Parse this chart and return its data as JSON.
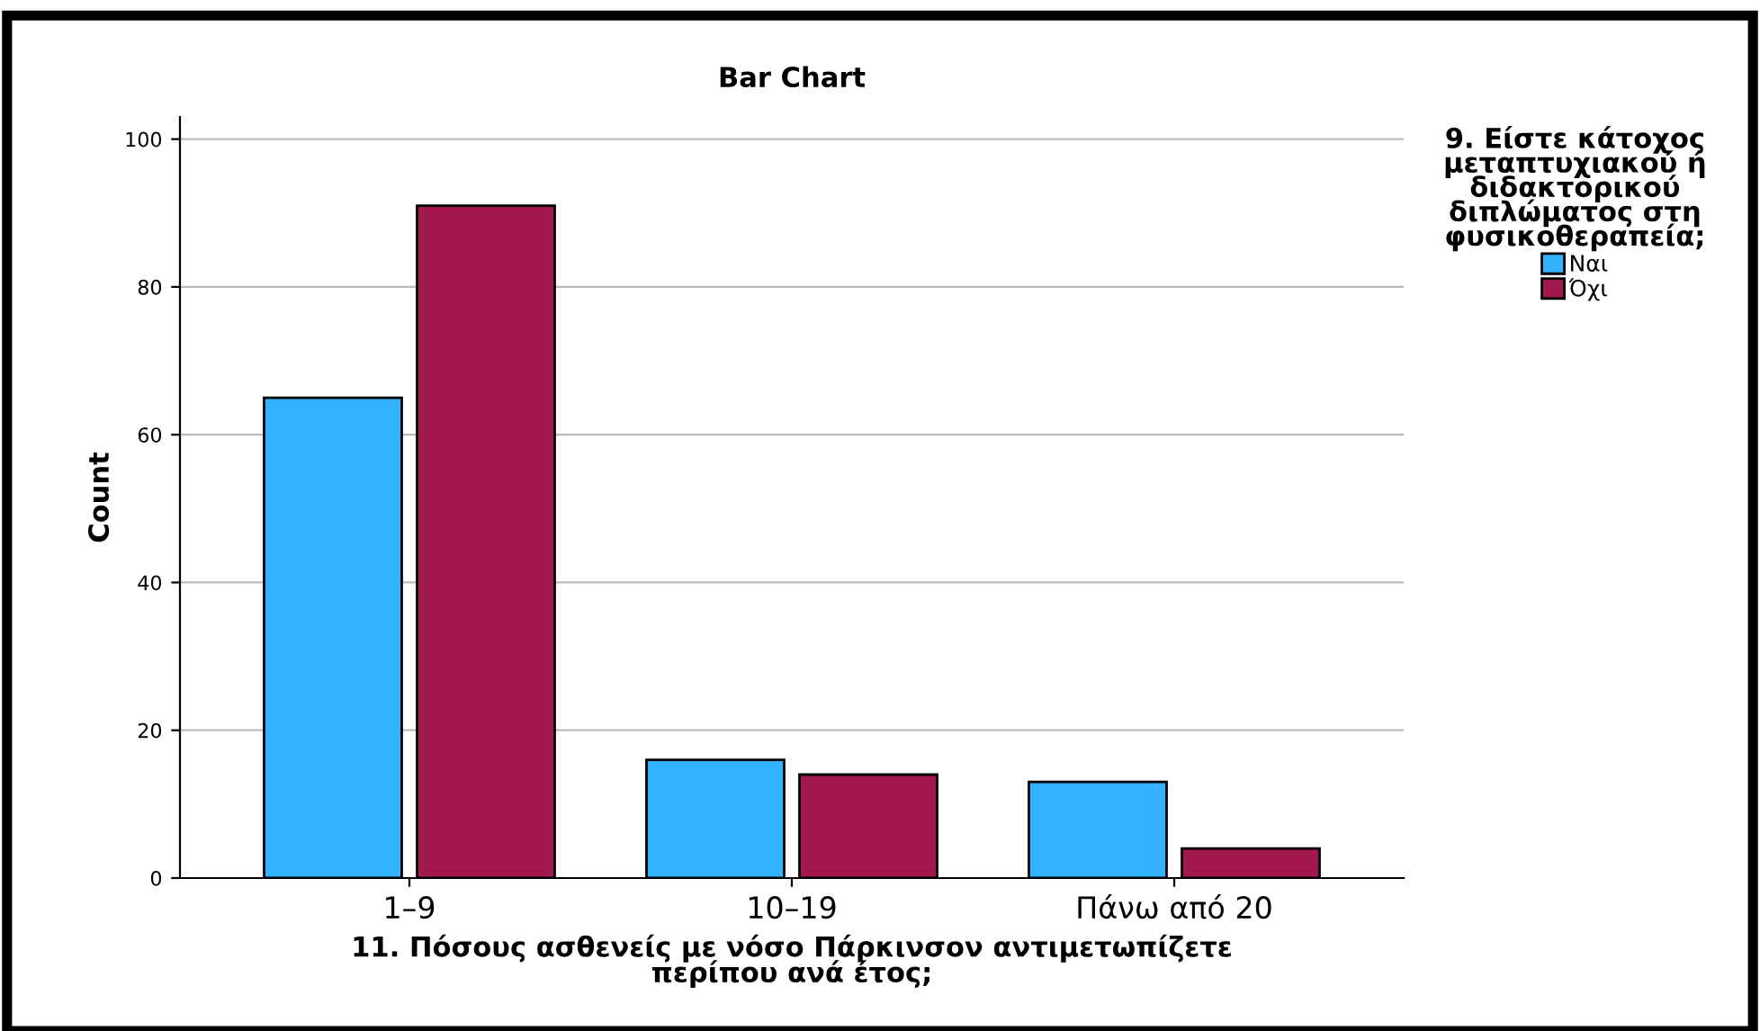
{
  "chart_data": {
    "type": "bar",
    "title": "Bar Chart",
    "xlabel": "11. Πόσους ασθενείς με νόσο Πάρκινσον αντιμετωπίζετε\nπερίπου ανά έτος;",
    "ylabel": "Count",
    "legend_title": "9. Είστε κάτοχος\nμεταπτυχιακού ή\nδιδακτορικού\nδιπλώματος στη\nφυσικοθεραπεία;",
    "categories": [
      "1–9",
      "10–19",
      "Πάνω από 20"
    ],
    "series": [
      {
        "name": "Ναι",
        "color": "#33b3ff",
        "values": [
          65,
          16,
          13
        ]
      },
      {
        "name": "Όχι",
        "color": "#a3174f",
        "values": [
          91,
          14,
          4
        ]
      }
    ],
    "ylim": [
      0,
      103
    ],
    "yticks": [
      0,
      20,
      40,
      60,
      80,
      100
    ],
    "grid": "y",
    "legend": "top right"
  }
}
